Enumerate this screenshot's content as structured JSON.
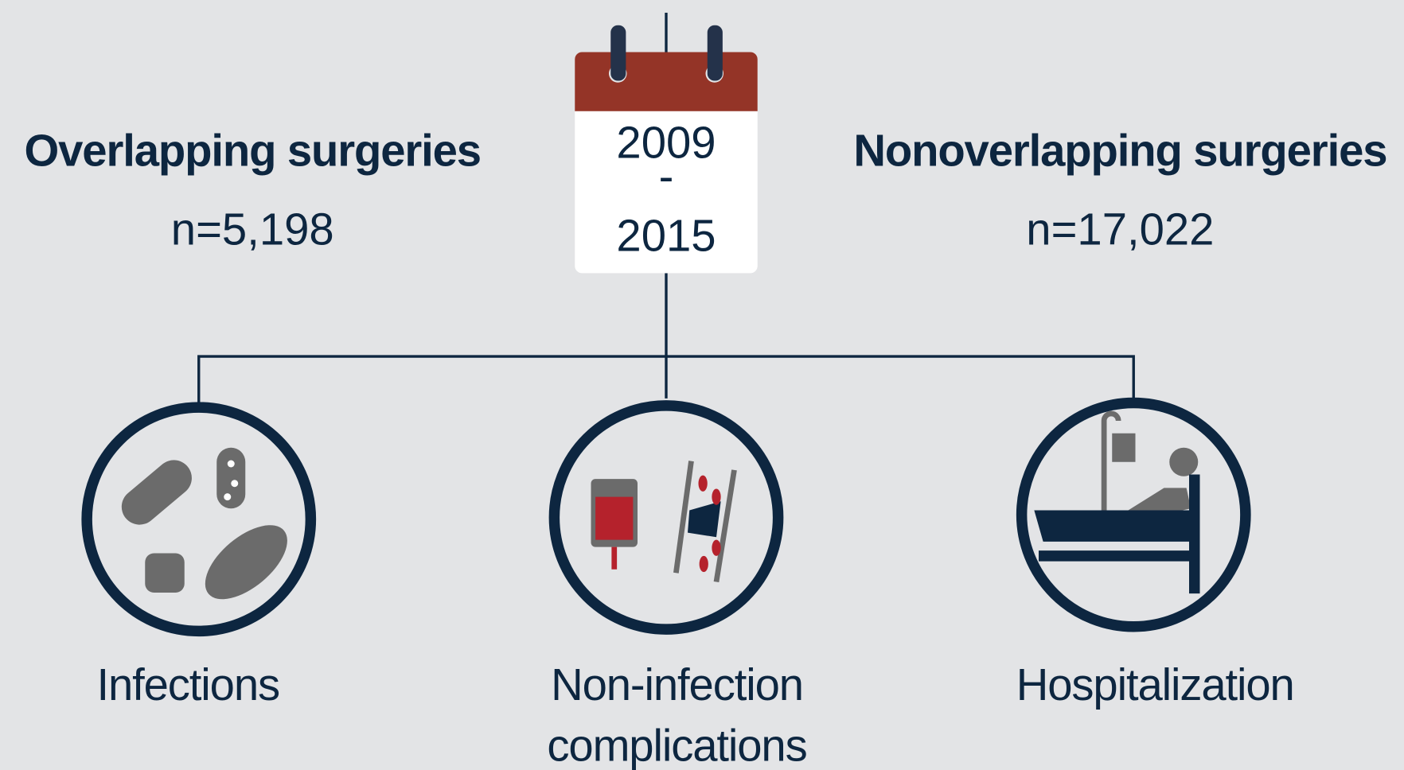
{
  "calendar": {
    "start": "2009",
    "separator": "-",
    "end": "2015"
  },
  "groups": [
    {
      "title": "Overlapping surgeries",
      "count": "n=5,198"
    },
    {
      "title": "Nonoverlapping surgeries",
      "count": "n=17,022"
    }
  ],
  "outcomes": [
    {
      "label": [
        "Infections"
      ]
    },
    {
      "label": [
        "Non-infection",
        "complications"
      ]
    },
    {
      "label": [
        "Hospitalization"
      ]
    }
  ]
}
